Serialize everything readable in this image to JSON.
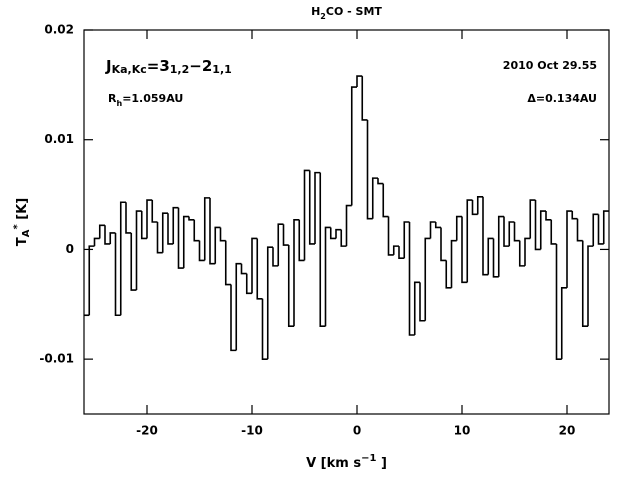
{
  "chart_data": {
    "type": "step",
    "title": [
      {
        "text": "H"
      },
      {
        "text": "2",
        "shift": "sub"
      },
      {
        "text": "CO - SMT"
      }
    ],
    "xlabel": [
      {
        "text": "V [km s"
      },
      {
        "text": "−1",
        "shift": "sup"
      },
      {
        "text": " ]"
      }
    ],
    "ylabel": [
      {
        "text": "T"
      },
      {
        "text": "A",
        "shift": "sub"
      },
      {
        "text": "*",
        "shift": "sup"
      },
      {
        "text": " [K]"
      }
    ],
    "annotations": [
      [
        {
          "text": "J"
        },
        {
          "text": "Ka,Kc",
          "shift": "sub"
        },
        {
          "text": "=3"
        },
        {
          "text": "1,2",
          "shift": "sub"
        },
        {
          "text": "−2"
        },
        {
          "text": "1,1",
          "shift": "sub"
        }
      ],
      [
        {
          "text": "R"
        },
        {
          "text": "h",
          "shift": "sub"
        },
        {
          "text": "=1.059AU"
        }
      ],
      [
        {
          "text": "2010 Oct 29.55"
        }
      ],
      [
        {
          "text": "Δ=0.134AU"
        }
      ]
    ],
    "color": "#000000",
    "xlim": [
      -26,
      24
    ],
    "xticks": [
      -20,
      -10,
      0,
      10,
      20
    ],
    "ylim": [
      -0.015,
      0.02
    ],
    "yticks": [
      -0.01,
      0,
      0.01,
      0.02
    ],
    "x": [
      -25.75,
      -25.25,
      -24.75,
      -24.25,
      -23.75,
      -23.25,
      -22.75,
      -22.25,
      -21.75,
      -21.25,
      -20.75,
      -20.25,
      -19.75,
      -19.25,
      -18.75,
      -18.25,
      -17.75,
      -17.25,
      -16.75,
      -16.25,
      -15.75,
      -15.25,
      -14.75,
      -14.25,
      -13.75,
      -13.25,
      -12.75,
      -12.25,
      -11.75,
      -11.25,
      -10.75,
      -10.25,
      -9.75,
      -9.25,
      -8.75,
      -8.25,
      -7.75,
      -7.25,
      -6.75,
      -6.25,
      -5.75,
      -5.25,
      -4.75,
      -4.25,
      -3.75,
      -3.25,
      -2.75,
      -2.25,
      -1.75,
      -1.25,
      -0.75,
      -0.25,
      0.25,
      0.75,
      1.25,
      1.75,
      2.25,
      2.75,
      3.25,
      3.75,
      4.25,
      4.75,
      5.25,
      5.75,
      6.25,
      6.75,
      7.25,
      7.75,
      8.25,
      8.75,
      9.25,
      9.75,
      10.25,
      10.75,
      11.25,
      11.75,
      12.25,
      12.75,
      13.25,
      13.75,
      14.25,
      14.75,
      15.25,
      15.75,
      16.25,
      16.75,
      17.25,
      17.75,
      18.25,
      18.75,
      19.25,
      19.75,
      20.25,
      20.75,
      21.25,
      21.75,
      22.25,
      22.75,
      23.25,
      23.75
    ],
    "values": [
      -0.006,
      0.0003,
      0.001,
      0.0022,
      0.0005,
      0.0015,
      -0.006,
      0.0043,
      0.0015,
      -0.0037,
      0.0035,
      0.001,
      0.0045,
      0.0025,
      -0.0003,
      0.0033,
      0.0005,
      0.0038,
      -0.0017,
      0.003,
      0.0027,
      0.0008,
      -0.001,
      0.0047,
      -0.0013,
      0.002,
      0.0008,
      -0.0032,
      -0.0092,
      -0.0013,
      -0.0022,
      -0.004,
      0.001,
      -0.0045,
      -0.01,
      0.0002,
      -0.0015,
      0.0023,
      0.0004,
      -0.007,
      0.0027,
      -0.001,
      0.0072,
      0.0005,
      0.007,
      -0.007,
      0.002,
      0.001,
      0.0018,
      0.0003,
      0.004,
      0.0148,
      0.0158,
      0.0118,
      0.0028,
      0.0065,
      0.006,
      0.003,
      -0.0005,
      0.0003,
      -0.0008,
      0.0025,
      -0.0078,
      -0.003,
      -0.0065,
      0.001,
      0.0025,
      0.002,
      -0.001,
      -0.0035,
      0.0008,
      0.003,
      -0.003,
      0.0045,
      0.0032,
      0.0048,
      -0.0023,
      0.001,
      -0.0025,
      0.003,
      0.0003,
      0.0025,
      0.0008,
      -0.0015,
      0.001,
      0.0045,
      0,
      0.0035,
      0.0027,
      0.0005,
      -0.01,
      -0.0035,
      0.0035,
      0.0028,
      0.0008,
      -0.007,
      0.0003,
      0.0032,
      0.0005,
      0.0035
    ]
  }
}
